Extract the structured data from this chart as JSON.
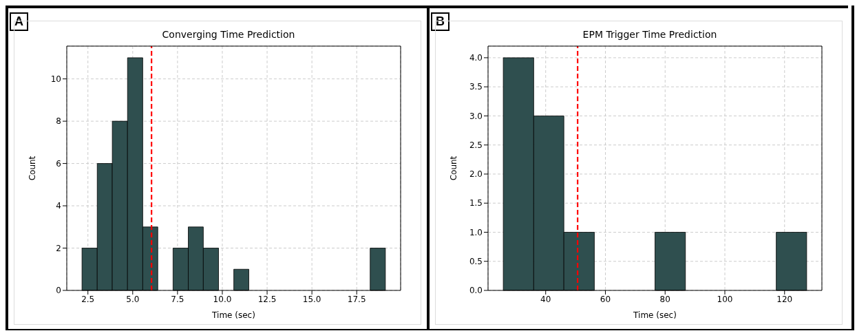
{
  "chart_data": [
    {
      "type": "histogram",
      "title": "Converging Time Prediction",
      "xlabel": "Time (sec)",
      "ylabel": "Count",
      "annotations": [
        "A"
      ],
      "bins": [
        2.17,
        3.02,
        3.86,
        4.71,
        5.56,
        6.4,
        7.25,
        8.1,
        8.94,
        9.79,
        10.64,
        11.48,
        12.33,
        13.17,
        14.02,
        14.87,
        15.71,
        16.56,
        17.41,
        18.25,
        19.1
      ],
      "values": [
        2,
        6,
        8,
        11,
        3,
        0,
        2,
        3,
        2,
        0,
        1,
        0,
        0,
        0,
        0,
        0,
        0,
        0,
        0,
        2
      ],
      "color": "#2f4f4f",
      "xlim": [
        1.32,
        19.95
      ],
      "xticks": [
        2.5,
        {
          "value": 5,
          "label": "5.0"
        },
        7.5,
        {
          "value": 10,
          "label": "10.0"
        },
        12.5,
        {
          "value": 15,
          "label": "15.0"
        },
        17.5
      ],
      "ylim": [
        0,
        11.55
      ],
      "yticks": [
        0,
        2,
        4,
        6,
        8,
        10
      ],
      "grid": true,
      "ref_lines": [
        {
          "axis": "x",
          "value": 6.05,
          "color": "#ff0000",
          "line_style": "dashed"
        }
      ]
    },
    {
      "type": "histogram",
      "title": "EPM Trigger Time Prediction",
      "xlabel": "Time (sec)",
      "ylabel": "Count",
      "annotations": [
        "B"
      ],
      "bins": [
        25.8,
        36.0,
        46.1,
        56.3,
        66.4,
        76.6,
        86.8,
        96.9,
        107.1,
        117.2,
        127.4
      ],
      "values": [
        4,
        3,
        1,
        0,
        0,
        1,
        0,
        0,
        0,
        1
      ],
      "color": "#2f4f4f",
      "xlim": [
        20.7,
        132.5
      ],
      "xticks": [
        40,
        60,
        80,
        100,
        120
      ],
      "ylim": [
        0,
        4.2
      ],
      "yticks": [
        {
          "value": 0,
          "label": "0.0"
        },
        0.5,
        {
          "value": 1,
          "label": "1.0"
        },
        1.5,
        {
          "value": 2,
          "label": "2.0"
        },
        2.5,
        {
          "value": 3,
          "label": "3.0"
        },
        3.5,
        {
          "value": 4,
          "label": "4.0"
        }
      ],
      "grid": true,
      "ref_lines": [
        {
          "axis": "x",
          "value": 50.7,
          "color": "#ff0000",
          "line_style": "dashed"
        }
      ]
    }
  ]
}
